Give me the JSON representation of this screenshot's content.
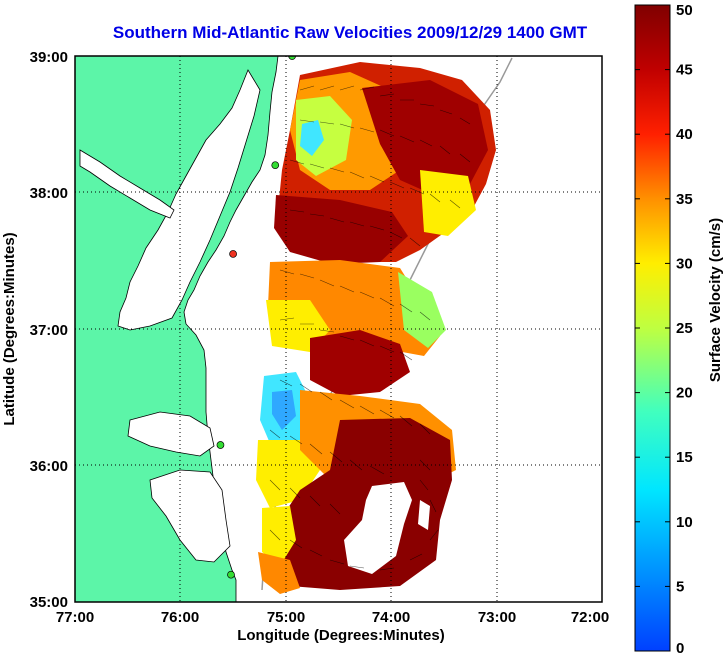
{
  "title": "Southern Mid-Atlantic Raw Velocities 2009/12/29 1400 GMT",
  "x_axis": {
    "label": "Longitude (Degrees:Minutes)",
    "ticks": [
      "77:00",
      "76:00",
      "75:00",
      "74:00",
      "73:00",
      "72:00"
    ],
    "values": [
      -77,
      -76,
      -75,
      -74,
      -73,
      -72
    ]
  },
  "y_axis": {
    "label": "Latitude (Degrees:Minutes)",
    "ticks": [
      "39:00",
      "38:00",
      "37:00",
      "36:00",
      "35:00"
    ],
    "values": [
      39,
      38,
      37,
      36,
      35
    ]
  },
  "colorbar": {
    "label": "Surface Velocity (cm/s)",
    "ticks": [
      "50",
      "45",
      "40",
      "35",
      "30",
      "25",
      "20",
      "15",
      "10",
      "5",
      "0"
    ],
    "range": [
      0,
      50
    ]
  },
  "colors": {
    "land": "#5cf5a8",
    "water": "#ffffff",
    "title": "#0000e6",
    "station": "#33dd33",
    "station_alt": "#ee3322"
  },
  "stations": [
    {
      "lon": -74.94,
      "lat": 39.0,
      "kind": "normal"
    },
    {
      "lon": -75.1,
      "lat": 38.2,
      "kind": "normal"
    },
    {
      "lon": -75.5,
      "lat": 37.55,
      "kind": "alt"
    },
    {
      "lon": -75.62,
      "lat": 36.15,
      "kind": "normal"
    },
    {
      "lon": -75.52,
      "lat": 35.2,
      "kind": "normal"
    }
  ]
}
